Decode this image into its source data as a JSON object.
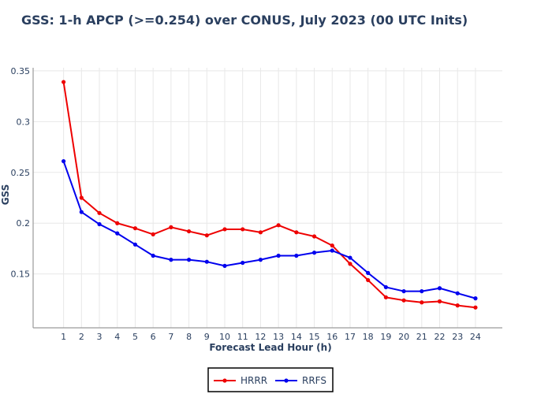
{
  "chart_data": {
    "type": "line",
    "title": "GSS: 1-h APCP (>=0.254) over CONUS, July 2023 (00 UTC Inits)",
    "xlabel": "Forecast Lead Hour (h)",
    "ylabel": "GSS",
    "x": [
      1,
      2,
      3,
      4,
      5,
      6,
      7,
      8,
      9,
      10,
      11,
      12,
      13,
      14,
      15,
      16,
      17,
      18,
      19,
      20,
      21,
      22,
      23,
      24
    ],
    "xticks": [
      "1",
      "2",
      "3",
      "4",
      "5",
      "6",
      "7",
      "8",
      "9",
      "10",
      "11",
      "12",
      "13",
      "14",
      "15",
      "16",
      "17",
      "18",
      "19",
      "20",
      "21",
      "22",
      "23",
      "24"
    ],
    "xlim": [
      -0.7,
      25.5
    ],
    "ylim": [
      0.097,
      0.353
    ],
    "yticks": [
      0.15,
      0.2,
      0.25,
      0.3,
      0.35
    ],
    "ytick_labels": [
      "0.15",
      "0.2",
      "0.25",
      "0.3",
      "0.35"
    ],
    "grid": true,
    "legend_position": "bottom-center",
    "series": [
      {
        "name": "HRRR",
        "color": "#ee0000",
        "values": [
          0.339,
          0.225,
          0.21,
          0.2,
          0.195,
          0.189,
          0.196,
          0.192,
          0.188,
          0.194,
          0.194,
          0.191,
          0.198,
          0.191,
          0.187,
          0.178,
          0.16,
          0.144,
          0.127,
          0.124,
          0.122,
          0.123,
          0.119,
          0.117
        ]
      },
      {
        "name": "RRFS",
        "color": "#0000ee",
        "values": [
          0.261,
          0.211,
          0.199,
          0.19,
          0.179,
          0.168,
          0.164,
          0.164,
          0.162,
          0.158,
          0.161,
          0.164,
          0.168,
          0.168,
          0.171,
          0.173,
          0.166,
          0.151,
          0.137,
          0.133,
          0.133,
          0.136,
          0.131,
          0.126
        ]
      }
    ]
  }
}
